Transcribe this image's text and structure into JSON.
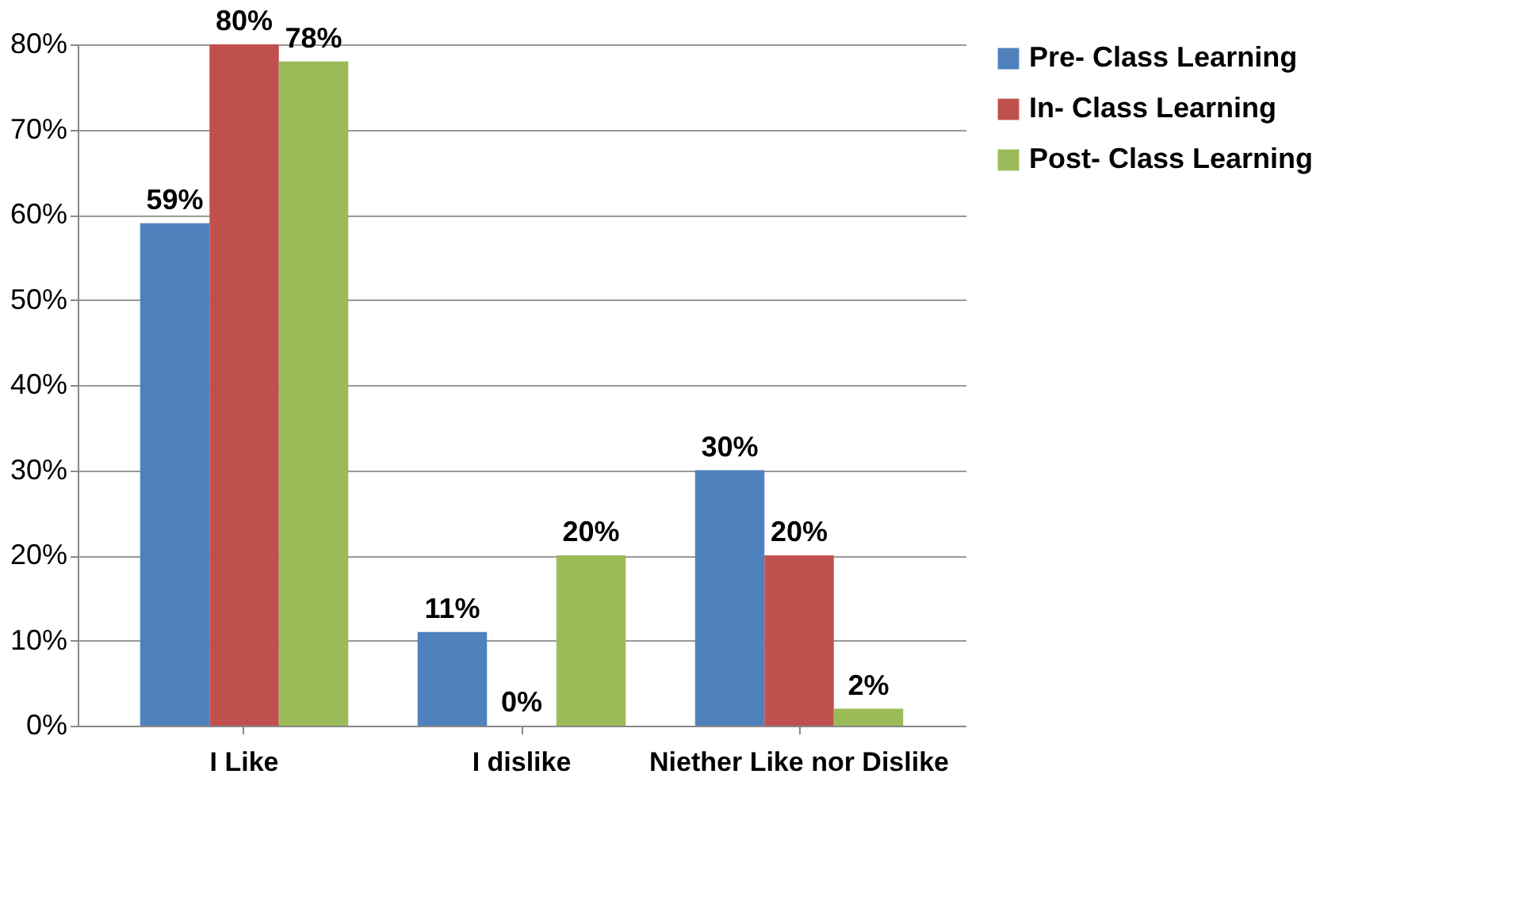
{
  "chart_data": {
    "type": "bar",
    "categories": [
      "I Like",
      "I dislike",
      "Niether Like nor Dislike"
    ],
    "series": [
      {
        "name": "Pre- Class Learning",
        "color": "#4f81bd",
        "values": [
          59,
          11,
          30
        ],
        "value_labels": [
          "59%",
          "11%",
          "30%"
        ]
      },
      {
        "name": "In- Class Learning",
        "color": "#c0504d",
        "values": [
          80,
          0,
          20
        ],
        "value_labels": [
          "80%",
          "0%",
          "20%"
        ]
      },
      {
        "name": "Post- Class Learning",
        "color": "#9bbb59",
        "values": [
          78,
          20,
          2
        ],
        "value_labels": [
          "78%",
          "20%",
          "2%"
        ]
      }
    ],
    "ylim": [
      0,
      80
    ],
    "yticks": [
      {
        "value": 0,
        "label": "0%"
      },
      {
        "value": 10,
        "label": "10%"
      },
      {
        "value": 20,
        "label": "20%"
      },
      {
        "value": 30,
        "label": "30%"
      },
      {
        "value": 40,
        "label": "40%"
      },
      {
        "value": 50,
        "label": "50%"
      },
      {
        "value": 60,
        "label": "60%"
      },
      {
        "value": 70,
        "label": "70%"
      },
      {
        "value": 80,
        "label": "80%"
      }
    ],
    "grid": "y",
    "legend": "right"
  }
}
